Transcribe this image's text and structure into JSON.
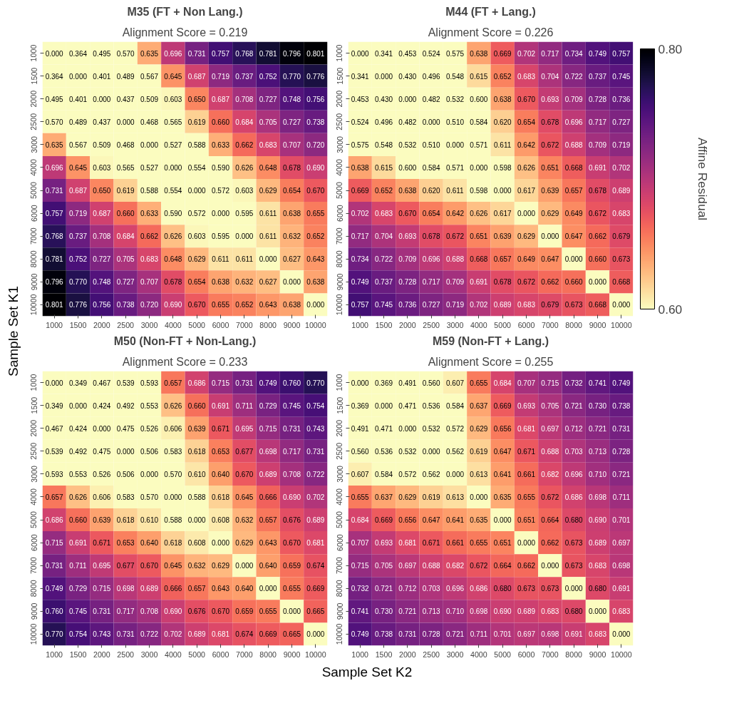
{
  "chart_data": [
    {
      "type": "heatmap",
      "title": "M35 (FT + Non Lang.)",
      "subtitle": "Alignment Score = 0.219",
      "ylabel": "Sample Set K1",
      "categories": [
        "1000",
        "1500",
        "2000",
        "2500",
        "3000",
        "4000",
        "5000",
        "6000",
        "7000",
        "8000",
        "9000",
        "10000"
      ],
      "y_categories": [
        "1000",
        "1500",
        "2000",
        "2500",
        "3000",
        "4000",
        "5000",
        "6000",
        "7000",
        "8000",
        "9000",
        "10000"
      ],
      "cells": [
        [
          0.0,
          0.364,
          0.495,
          0.57,
          0.635,
          0.696,
          0.731,
          0.757,
          0.768,
          0.781,
          0.796,
          0.801
        ],
        [
          0.364,
          0.0,
          0.401,
          0.489,
          0.567,
          0.645,
          0.687,
          0.719,
          0.737,
          0.752,
          0.77,
          0.776
        ],
        [
          0.495,
          0.401,
          0.0,
          0.437,
          0.509,
          0.603,
          0.65,
          0.687,
          0.708,
          0.727,
          0.748,
          0.756
        ],
        [
          0.57,
          0.489,
          0.437,
          0.0,
          0.468,
          0.565,
          0.619,
          0.66,
          0.684,
          0.705,
          0.727,
          0.738
        ],
        [
          0.635,
          0.567,
          0.509,
          0.468,
          0.0,
          0.527,
          0.588,
          0.633,
          0.662,
          0.683,
          0.707,
          0.72
        ],
        [
          0.696,
          0.645,
          0.603,
          0.565,
          0.527,
          0.0,
          0.554,
          0.59,
          0.626,
          0.648,
          0.678,
          0.69
        ],
        [
          0.731,
          0.687,
          0.65,
          0.619,
          0.588,
          0.554,
          0.0,
          0.572,
          0.603,
          0.629,
          0.654,
          0.67
        ],
        [
          0.757,
          0.719,
          0.687,
          0.66,
          0.633,
          0.59,
          0.572,
          0.0,
          0.595,
          0.611,
          0.638,
          0.655
        ],
        [
          0.768,
          0.737,
          0.708,
          0.684,
          0.662,
          0.626,
          0.603,
          0.595,
          0.0,
          0.611,
          0.632,
          0.652
        ],
        [
          0.781,
          0.752,
          0.727,
          0.705,
          0.683,
          0.648,
          0.629,
          0.611,
          0.611,
          0.0,
          0.627,
          0.643
        ],
        [
          0.796,
          0.77,
          0.748,
          0.727,
          0.707,
          0.678,
          0.654,
          0.638,
          0.632,
          0.627,
          0.0,
          0.638
        ],
        [
          0.801,
          0.776,
          0.756,
          0.738,
          0.72,
          0.69,
          0.67,
          0.655,
          0.652,
          0.643,
          0.638,
          0.0
        ]
      ],
      "cell_labels": [
        [
          "0.000",
          "0.364",
          "0.495",
          "0.570",
          "0.635",
          "0.696",
          "0.731",
          "0.757",
          "0.768",
          "0.781",
          "0.796",
          "0.801"
        ],
        [
          "0.364",
          "0.000",
          "0.401",
          "0.489",
          "0.567",
          "0.645",
          "0.687",
          "0.719",
          "0.737",
          "0.752",
          "0.770",
          "0.776"
        ],
        [
          "0.495",
          "0.401",
          "0.000",
          "0.437",
          "0.509",
          "0.603",
          "0.650",
          "0.687",
          "0.708",
          "0.727",
          "0.748",
          "0.756"
        ],
        [
          "0.570",
          "0.489",
          "0.437",
          "0.000",
          "0.468",
          "0.565",
          "0.619",
          "0.660",
          "0.684",
          "0.705",
          "0.727",
          "0.738"
        ],
        [
          "0.635",
          "0.567",
          "0.509",
          "0.468",
          "0.000",
          "0.527",
          "0.588",
          "0.633",
          "0.662",
          "0.683",
          "0.707",
          "0.720"
        ],
        [
          "0.696",
          "0.645",
          "0.603",
          "0.565",
          "0.527",
          "0.000",
          "0.554",
          "0.590",
          "0.626",
          "0.648",
          "0.678",
          "0.690"
        ],
        [
          "0.731",
          "0.687",
          "0.650",
          "0.619",
          "0.588",
          "0.554",
          "0.000",
          "0.572",
          "0.603",
          "0.629",
          "0.654",
          "0.670"
        ],
        [
          "0.757",
          "0.719",
          "0.687",
          "0.660",
          "0.633",
          "0.590",
          "0.572",
          "0.000",
          "0.595",
          "0.611",
          "0.638",
          "0.655"
        ],
        [
          "0.768",
          "0.737",
          "0.708",
          "0.684",
          "0.662",
          "0.626",
          "0.603",
          "0.595",
          "0.000",
          "0.611",
          "0.632",
          "0.652"
        ],
        [
          "0.781",
          "0.752",
          "0.727",
          "0.705",
          "0.683",
          "0.648",
          "0.629",
          "0.611",
          "0.611",
          "0.000",
          "0.627",
          "0.643"
        ],
        [
          "0.796",
          "0.770",
          "0.748",
          "0.727",
          "0.707",
          "0.678",
          "0.654",
          "0.638",
          "0.632",
          "0.627",
          "0.000",
          "0.638"
        ],
        [
          "0.801",
          "0.776",
          "0.756",
          "0.738",
          "0.720",
          "0.690",
          "0.670",
          "0.655",
          "0.652",
          "0.643",
          "0.638",
          "0.000"
        ]
      ]
    },
    {
      "type": "heatmap",
      "title": "M44 (FT + Lang.)",
      "subtitle": "Alignment Score = 0.226",
      "clabel": "Affine Residual",
      "clim": [
        0.6,
        0.8
      ],
      "cticks": [
        {
          "value": 0.6,
          "label": "0.60"
        },
        {
          "value": 0.8,
          "label": "0.80"
        }
      ],
      "categories": [
        "1000",
        "1500",
        "2000",
        "2500",
        "3000",
        "4000",
        "5000",
        "6000",
        "7000",
        "8000",
        "9000",
        "10000"
      ],
      "y_categories": [
        "1000",
        "1500",
        "2000",
        "2500",
        "3000",
        "4000",
        "5000",
        "6000",
        "7000",
        "8000",
        "9000",
        "10000"
      ],
      "cells": [
        [
          0.0,
          0.341,
          0.453,
          0.524,
          0.575,
          0.638,
          0.669,
          0.702,
          0.717,
          0.734,
          0.749,
          0.757
        ],
        [
          0.341,
          0.0,
          0.43,
          0.496,
          0.548,
          0.615,
          0.652,
          0.683,
          0.704,
          0.722,
          0.737,
          0.745
        ],
        [
          0.453,
          0.43,
          0.0,
          0.482,
          0.532,
          0.6,
          0.638,
          0.67,
          0.693,
          0.709,
          0.728,
          0.736
        ],
        [
          0.524,
          0.496,
          0.482,
          0.0,
          0.51,
          0.584,
          0.62,
          0.654,
          0.678,
          0.696,
          0.717,
          0.727
        ],
        [
          0.575,
          0.548,
          0.532,
          0.51,
          0.0,
          0.571,
          0.611,
          0.642,
          0.672,
          0.688,
          0.709,
          0.719
        ],
        [
          0.638,
          0.615,
          0.6,
          0.584,
          0.571,
          0.0,
          0.598,
          0.626,
          0.651,
          0.668,
          0.691,
          0.702
        ],
        [
          0.669,
          0.652,
          0.638,
          0.62,
          0.611,
          0.598,
          0.0,
          0.617,
          0.639,
          0.657,
          0.678,
          0.689
        ],
        [
          0.702,
          0.683,
          0.67,
          0.654,
          0.642,
          0.626,
          0.617,
          0.0,
          0.629,
          0.649,
          0.672,
          0.683
        ],
        [
          0.717,
          0.704,
          0.693,
          0.678,
          0.672,
          0.651,
          0.639,
          0.629,
          0.0,
          0.647,
          0.662,
          0.679
        ],
        [
          0.734,
          0.722,
          0.709,
          0.696,
          0.688,
          0.668,
          0.657,
          0.649,
          0.647,
          0.0,
          0.66,
          0.673
        ],
        [
          0.749,
          0.737,
          0.728,
          0.717,
          0.709,
          0.691,
          0.678,
          0.672,
          0.662,
          0.66,
          0.0,
          0.668
        ],
        [
          0.757,
          0.745,
          0.736,
          0.727,
          0.719,
          0.702,
          0.689,
          0.683,
          0.679,
          0.673,
          0.668,
          0.0
        ]
      ],
      "cell_labels": [
        [
          "0.000",
          "0.341",
          "0.453",
          "0.524",
          "0.575",
          "0.638",
          "0.669",
          "0.702",
          "0.717",
          "0.734",
          "0.749",
          "0.757"
        ],
        [
          "0.341",
          "0.000",
          "0.430",
          "0.496",
          "0.548",
          "0.615",
          "0.652",
          "0.683",
          "0.704",
          "0.722",
          "0.737",
          "0.745"
        ],
        [
          "0.453",
          "0.430",
          "0.000",
          "0.482",
          "0.532",
          "0.600",
          "0.638",
          "0.670",
          "0.693",
          "0.709",
          "0.728",
          "0.736"
        ],
        [
          "0.524",
          "0.496",
          "0.482",
          "0.000",
          "0.510",
          "0.584",
          "0.620",
          "0.654",
          "0.678",
          "0.696",
          "0.717",
          "0.727"
        ],
        [
          "0.575",
          "0.548",
          "0.532",
          "0.510",
          "0.000",
          "0.571",
          "0.611",
          "0.642",
          "0.672",
          "0.688",
          "0.709",
          "0.719"
        ],
        [
          "0.638",
          "0.615",
          "0.600",
          "0.584",
          "0.571",
          "0.000",
          "0.598",
          "0.626",
          "0.651",
          "0.668",
          "0.691",
          "0.702"
        ],
        [
          "0.669",
          "0.652",
          "0.638",
          "0.620",
          "0.611",
          "0.598",
          "0.000",
          "0.617",
          "0.639",
          "0.657",
          "0.678",
          "0.689"
        ],
        [
          "0.702",
          "0.683",
          "0.670",
          "0.654",
          "0.642",
          "0.626",
          "0.617",
          "0.000",
          "0.629",
          "0.649",
          "0.672",
          "0.683"
        ],
        [
          "0.717",
          "0.704",
          "0.693",
          "0.678",
          "0.672",
          "0.651",
          "0.639",
          "0.629",
          "0.000",
          "0.647",
          "0.662",
          "0.679"
        ],
        [
          "0.734",
          "0.722",
          "0.709",
          "0.696",
          "0.688",
          "0.668",
          "0.657",
          "0.649",
          "0.647",
          "0.000",
          "0.660",
          "0.673"
        ],
        [
          "0.749",
          "0.737",
          "0.728",
          "0.717",
          "0.709",
          "0.691",
          "0.678",
          "0.672",
          "0.662",
          "0.660",
          "0.000",
          "0.668"
        ],
        [
          "0.757",
          "0.745",
          "0.736",
          "0.727",
          "0.719",
          "0.702",
          "0.689",
          "0.683",
          "0.679",
          "0.673",
          "0.668",
          "0.000"
        ]
      ]
    },
    {
      "type": "heatmap",
      "title": "M50 (Non-FT + Non-Lang.)",
      "subtitle": "Alignment Score = 0.233",
      "xlabel": "Sample Set K2",
      "categories": [
        "1000",
        "1500",
        "2000",
        "2500",
        "3000",
        "4000",
        "5000",
        "6000",
        "7000",
        "8000",
        "9000",
        "10000"
      ],
      "y_categories": [
        "1000",
        "1500",
        "2000",
        "2500",
        "3000",
        "4000",
        "5000",
        "6000",
        "7000",
        "8000",
        "9000",
        "10000"
      ],
      "cells": [
        [
          0.0,
          0.349,
          0.467,
          0.539,
          0.593,
          0.657,
          0.686,
          0.715,
          0.731,
          0.749,
          0.76,
          0.77
        ],
        [
          0.349,
          0.0,
          0.424,
          0.492,
          0.553,
          0.626,
          0.66,
          0.691,
          0.711,
          0.729,
          0.745,
          0.754
        ],
        [
          0.467,
          0.424,
          0.0,
          0.475,
          0.526,
          0.606,
          0.639,
          0.671,
          0.695,
          0.715,
          0.731,
          0.743
        ],
        [
          0.539,
          0.492,
          0.475,
          0.0,
          0.506,
          0.583,
          0.618,
          0.653,
          0.677,
          0.698,
          0.717,
          0.731
        ],
        [
          0.593,
          0.553,
          0.526,
          0.506,
          0.0,
          0.57,
          0.61,
          0.64,
          0.67,
          0.689,
          0.708,
          0.722
        ],
        [
          0.657,
          0.626,
          0.606,
          0.583,
          0.57,
          0.0,
          0.588,
          0.618,
          0.645,
          0.666,
          0.69,
          0.702
        ],
        [
          0.686,
          0.66,
          0.639,
          0.618,
          0.61,
          0.588,
          0.0,
          0.608,
          0.632,
          0.657,
          0.676,
          0.689
        ],
        [
          0.715,
          0.691,
          0.671,
          0.653,
          0.64,
          0.618,
          0.608,
          0.0,
          0.629,
          0.643,
          0.67,
          0.681
        ],
        [
          0.731,
          0.711,
          0.695,
          0.677,
          0.67,
          0.645,
          0.632,
          0.629,
          0.0,
          0.64,
          0.659,
          0.674
        ],
        [
          0.749,
          0.729,
          0.715,
          0.698,
          0.689,
          0.666,
          0.657,
          0.643,
          0.64,
          0.0,
          0.655,
          0.669
        ],
        [
          0.76,
          0.745,
          0.731,
          0.717,
          0.708,
          0.69,
          0.676,
          0.67,
          0.659,
          0.655,
          0.0,
          0.665
        ],
        [
          0.77,
          0.754,
          0.743,
          0.731,
          0.722,
          0.702,
          0.689,
          0.681,
          0.674,
          0.669,
          0.665,
          0.0
        ]
      ],
      "cell_labels": [
        [
          "0.000",
          "0.349",
          "0.467",
          "0.539",
          "0.593",
          "0.657",
          "0.686",
          "0.715",
          "0.731",
          "0.749",
          "0.760",
          "0.770"
        ],
        [
          "0.349",
          "0.000",
          "0.424",
          "0.492",
          "0.553",
          "0.626",
          "0.660",
          "0.691",
          "0.711",
          "0.729",
          "0.745",
          "0.754"
        ],
        [
          "0.467",
          "0.424",
          "0.000",
          "0.475",
          "0.526",
          "0.606",
          "0.639",
          "0.671",
          "0.695",
          "0.715",
          "0.731",
          "0.743"
        ],
        [
          "0.539",
          "0.492",
          "0.475",
          "0.000",
          "0.506",
          "0.583",
          "0.618",
          "0.653",
          "0.677",
          "0.698",
          "0.717",
          "0.731"
        ],
        [
          "0.593",
          "0.553",
          "0.526",
          "0.506",
          "0.000",
          "0.570",
          "0.610",
          "0.640",
          "0.670",
          "0.689",
          "0.708",
          "0.722"
        ],
        [
          "0.657",
          "0.626",
          "0.606",
          "0.583",
          "0.570",
          "0.000",
          "0.588",
          "0.618",
          "0.645",
          "0.666",
          "0.690",
          "0.702"
        ],
        [
          "0.686",
          "0.660",
          "0.639",
          "0.618",
          "0.610",
          "0.588",
          "0.000",
          "0.608",
          "0.632",
          "0.657",
          "0.676",
          "0.689"
        ],
        [
          "0.715",
          "0.691",
          "0.671",
          "0.653",
          "0.640",
          "0.618",
          "0.608",
          "0.000",
          "0.629",
          "0.643",
          "0.670",
          "0.681"
        ],
        [
          "0.731",
          "0.711",
          "0.695",
          "0.677",
          "0.670",
          "0.645",
          "0.632",
          "0.629",
          "0.000",
          "0.640",
          "0.659",
          "0.674"
        ],
        [
          "0.749",
          "0.729",
          "0.715",
          "0.698",
          "0.689",
          "0.666",
          "0.657",
          "0.643",
          "0.640",
          "0.000",
          "0.655",
          "0.669"
        ],
        [
          "0.760",
          "0.745",
          "0.731",
          "0.717",
          "0.708",
          "0.690",
          "0.676",
          "0.670",
          "0.659",
          "0.655",
          "0.000",
          "0.665"
        ],
        [
          "0.770",
          "0.754",
          "0.743",
          "0.731",
          "0.722",
          "0.702",
          "0.689",
          "0.681",
          "0.674",
          "0.669",
          "0.665",
          "0.000"
        ]
      ]
    },
    {
      "type": "heatmap",
      "title": "M59 (Non-FT + Lang.)",
      "subtitle": "Alignment Score = 0.255",
      "categories": [
        "1000",
        "1500",
        "2000",
        "2500",
        "3000",
        "4000",
        "5000",
        "6000",
        "7000",
        "8000",
        "9000",
        "10000"
      ],
      "y_categories": [
        "1000",
        "1500",
        "2000",
        "2500",
        "3000",
        "4000",
        "5000",
        "6000",
        "7000",
        "8000",
        "9000",
        "10000"
      ],
      "cells": [
        [
          0.0,
          0.369,
          0.491,
          0.56,
          0.607,
          0.655,
          0.684,
          0.707,
          0.715,
          0.732,
          0.741,
          0.749
        ],
        [
          0.369,
          0.0,
          0.471,
          0.536,
          0.584,
          0.637,
          0.669,
          0.693,
          0.705,
          0.721,
          0.73,
          0.738
        ],
        [
          0.491,
          0.471,
          0.0,
          0.532,
          0.572,
          0.629,
          0.656,
          0.681,
          0.697,
          0.712,
          0.721,
          0.731
        ],
        [
          0.56,
          0.536,
          0.532,
          0.0,
          0.562,
          0.619,
          0.647,
          0.671,
          0.688,
          0.703,
          0.713,
          0.728
        ],
        [
          0.607,
          0.584,
          0.572,
          0.562,
          0.0,
          0.613,
          0.641,
          0.661,
          0.682,
          0.696,
          0.71,
          0.721
        ],
        [
          0.655,
          0.637,
          0.629,
          0.619,
          0.613,
          0.0,
          0.635,
          0.655,
          0.672,
          0.686,
          0.698,
          0.711
        ],
        [
          0.684,
          0.669,
          0.656,
          0.647,
          0.641,
          0.635,
          0.0,
          0.651,
          0.664,
          0.68,
          0.69,
          0.701
        ],
        [
          0.707,
          0.693,
          0.681,
          0.671,
          0.661,
          0.655,
          0.651,
          0.0,
          0.662,
          0.673,
          0.689,
          0.697
        ],
        [
          0.715,
          0.705,
          0.697,
          0.688,
          0.682,
          0.672,
          0.664,
          0.662,
          0.0,
          0.673,
          0.683,
          0.698
        ],
        [
          0.732,
          0.721,
          0.712,
          0.703,
          0.696,
          0.686,
          0.68,
          0.673,
          0.673,
          0.0,
          0.68,
          0.691
        ],
        [
          0.741,
          0.73,
          0.721,
          0.713,
          0.71,
          0.698,
          0.69,
          0.689,
          0.683,
          0.68,
          0.0,
          0.683
        ],
        [
          0.749,
          0.738,
          0.731,
          0.728,
          0.721,
          0.711,
          0.701,
          0.697,
          0.698,
          0.691,
          0.683,
          0.0
        ]
      ],
      "cell_labels": [
        [
          "0.000",
          "0.369",
          "0.491",
          "0.560",
          "0.607",
          "0.655",
          "0.684",
          "0.707",
          "0.715",
          "0.732",
          "0.741",
          "0.749"
        ],
        [
          "0.369",
          "0.000",
          "0.471",
          "0.536",
          "0.584",
          "0.637",
          "0.669",
          "0.693",
          "0.705",
          "0.721",
          "0.730",
          "0.738"
        ],
        [
          "0.491",
          "0.471",
          "0.000",
          "0.532",
          "0.572",
          "0.629",
          "0.656",
          "0.681",
          "0.697",
          "0.712",
          "0.721",
          "0.731"
        ],
        [
          "0.560",
          "0.536",
          "0.532",
          "0.000",
          "0.562",
          "0.619",
          "0.647",
          "0.671",
          "0.688",
          "0.703",
          "0.713",
          "0.728"
        ],
        [
          "0.607",
          "0.584",
          "0.572",
          "0.562",
          "0.000",
          "0.613",
          "0.641",
          "0.661",
          "0.682",
          "0.696",
          "0.710",
          "0.721"
        ],
        [
          "0.655",
          "0.637",
          "0.629",
          "0.619",
          "0.613",
          "0.000",
          "0.635",
          "0.655",
          "0.672",
          "0.686",
          "0.698",
          "0.711"
        ],
        [
          "0.684",
          "0.669",
          "0.656",
          "0.647",
          "0.641",
          "0.635",
          "0.000",
          "0.651",
          "0.664",
          "0.680",
          "0.690",
          "0.701"
        ],
        [
          "0.707",
          "0.693",
          "0.681",
          "0.671",
          "0.661",
          "0.655",
          "0.651",
          "0.000",
          "0.662",
          "0.673",
          "0.689",
          "0.697"
        ],
        [
          "0.715",
          "0.705",
          "0.697",
          "0.688",
          "0.682",
          "0.672",
          "0.664",
          "0.662",
          "0.000",
          "0.673",
          "0.683",
          "0.698"
        ],
        [
          "0.732",
          "0.721",
          "0.712",
          "0.703",
          "0.696",
          "0.686",
          "0.680",
          "0.673",
          "0.673",
          "0.000",
          "0.680",
          "0.691"
        ],
        [
          "0.741",
          "0.730",
          "0.721",
          "0.713",
          "0.710",
          "0.698",
          "0.690",
          "0.689",
          "0.683",
          "0.680",
          "0.000",
          "0.683"
        ],
        [
          "0.749",
          "0.738",
          "0.731",
          "0.728",
          "0.721",
          "0.711",
          "0.701",
          "0.697",
          "0.698",
          "0.691",
          "0.683",
          "0.000"
        ]
      ]
    }
  ]
}
